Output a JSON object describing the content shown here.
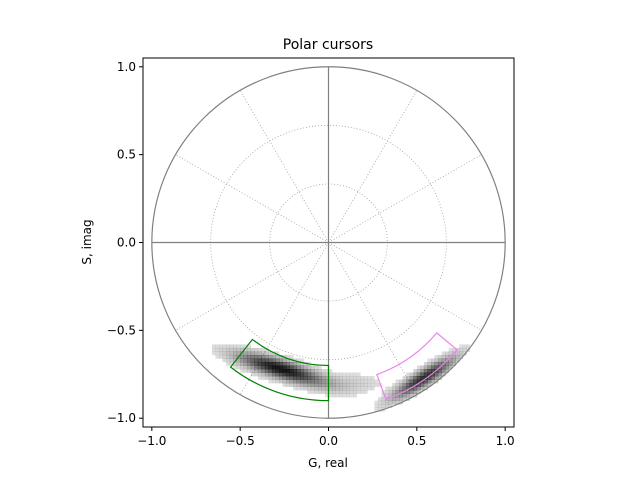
{
  "chart_data": {
    "type": "polar_histogram",
    "title": "Polar cursors",
    "xlabel": "G, real",
    "ylabel": "S, imag",
    "xlim": [
      -1.05,
      1.05
    ],
    "ylim": [
      -1.05,
      1.05
    ],
    "xticks": [
      -1.0,
      -0.5,
      0.0,
      0.5,
      1.0
    ],
    "yticks": [
      -1.0,
      -0.5,
      0.0,
      0.5,
      1.0
    ],
    "xtick_labels": [
      "−1.0",
      "−0.5",
      "0.0",
      "0.5",
      "1.0"
    ],
    "ytick_labels": [
      "−1.0",
      "−0.5",
      "0.0",
      "0.5",
      "1.0"
    ],
    "unit_circle_radius": 1.0,
    "grid": {
      "radii": [
        0.333,
        0.667
      ],
      "angles_deg": [
        0,
        30,
        60,
        90,
        120,
        150,
        180,
        210,
        240,
        270,
        300,
        330
      ]
    },
    "colors": {
      "circle": "#808080",
      "grid": "#a0a0a0",
      "histogram": "#000000",
      "cursor_1": "#008000",
      "cursor_2": "#ee82ee"
    },
    "cursors": [
      {
        "color_key": "cursor_1",
        "phase_deg": [
          232,
          270
        ],
        "modulation": [
          0.7,
          0.9
        ]
      },
      {
        "color_key": "cursor_2",
        "phase_deg": [
          290,
          320
        ],
        "modulation": [
          0.8,
          0.95
        ]
      }
    ],
    "clusters": [
      {
        "center": [
          -0.27,
          -0.72
        ],
        "angle_deg": -17,
        "sx": 0.17,
        "sy": 0.035,
        "peak": 1.0
      },
      {
        "center": [
          0.54,
          -0.77
        ],
        "angle_deg": 33,
        "sx": 0.14,
        "sy": 0.03,
        "peak": 0.85
      },
      {
        "center": [
          0.12,
          -0.8
        ],
        "angle_deg": 0,
        "sx": 0.13,
        "sy": 0.04,
        "peak": 0.12
      }
    ],
    "histogram_bin_size": 0.02
  }
}
